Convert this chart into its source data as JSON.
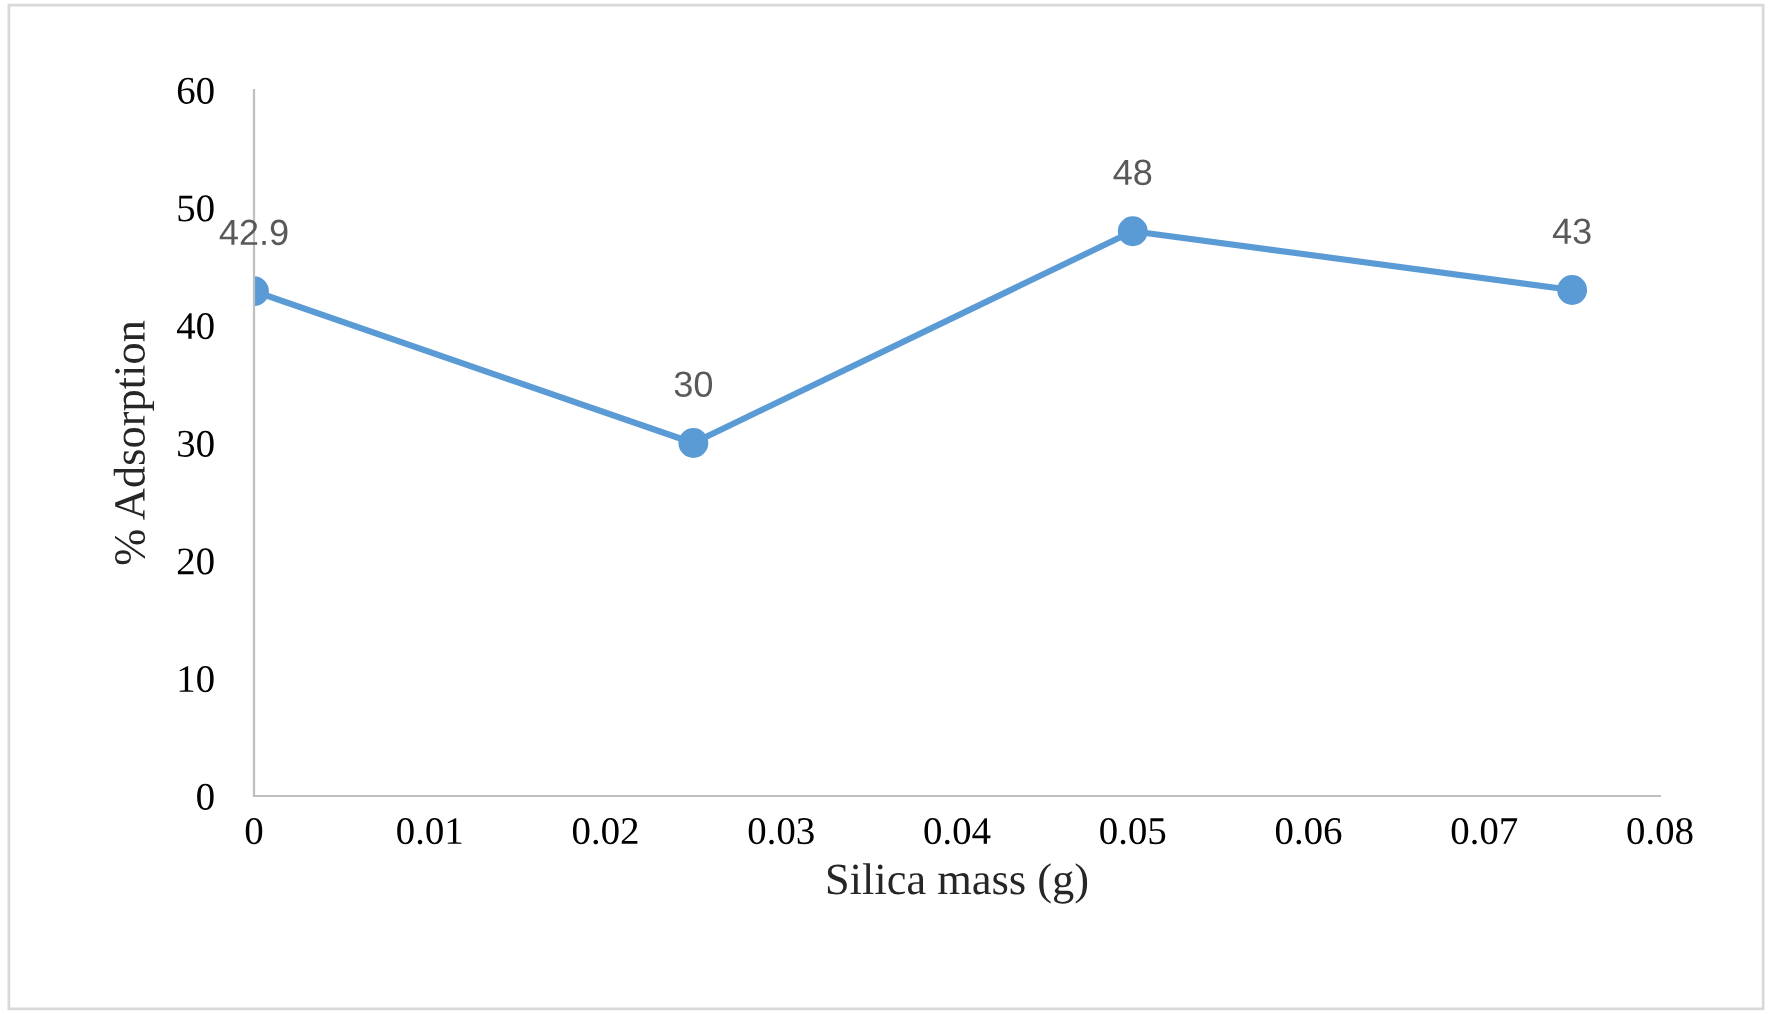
{
  "chart_data": {
    "type": "line",
    "xlabel": "Silica mass (g)",
    "ylabel": "% Adsorption",
    "x": [
      0,
      0.025,
      0.05,
      0.075
    ],
    "series": [
      {
        "color": "#5b9bd5",
        "values": [
          42.9,
          30,
          48,
          43
        ]
      }
    ],
    "xlim": [
      0,
      0.08
    ],
    "xticks": [
      0,
      0.01,
      0.02,
      0.03,
      0.04,
      0.05,
      0.06,
      0.07,
      0.08
    ],
    "ylim": [
      0,
      60
    ],
    "yticks": [
      0,
      10,
      20,
      30,
      40,
      50,
      60
    ],
    "grid": false,
    "marker": "circle",
    "line_style": "solid",
    "data_labels": true
  }
}
